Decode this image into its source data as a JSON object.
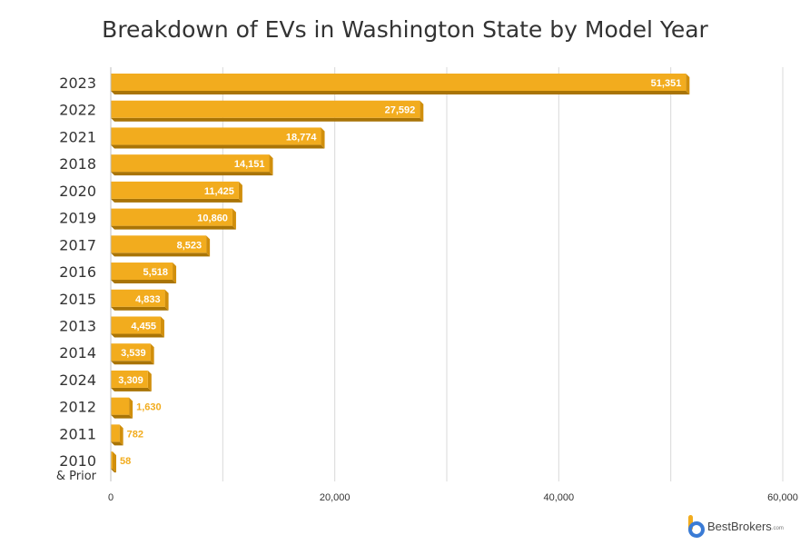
{
  "chart_data": {
    "type": "bar",
    "orientation": "horizontal",
    "title": "Breakdown of EVs in Washington State by Model Year",
    "xlabel": "",
    "ylabel": "",
    "categories": [
      "2023",
      "2022",
      "2021",
      "2018",
      "2020",
      "2019",
      "2017",
      "2016",
      "2015",
      "2013",
      "2014",
      "2024",
      "2012",
      "2011",
      "2010"
    ],
    "category_notes": {
      "2010": "& Prior"
    },
    "values": [
      51351,
      27592,
      18774,
      14151,
      11425,
      10860,
      8523,
      5518,
      4833,
      4455,
      3539,
      3309,
      1630,
      782,
      58
    ],
    "value_labels": [
      "51,351",
      "27,592",
      "18,774",
      "14,151",
      "11,425",
      "10,860",
      "8,523",
      "5,518",
      "4,833",
      "4,455",
      "3,539",
      "3,309",
      "1,630",
      "782",
      "58"
    ],
    "xlim": [
      0,
      60000
    ],
    "xticks": [
      0,
      20000,
      40000,
      60000
    ],
    "xtick_labels": [
      "0",
      "20,000",
      "40,000",
      "60,000"
    ],
    "grid": true,
    "bar_color": "#F2AC1E",
    "bar_shadow_color": "#A97406"
  },
  "brand": {
    "name": "BestBrokers",
    "domain": ".com"
  }
}
